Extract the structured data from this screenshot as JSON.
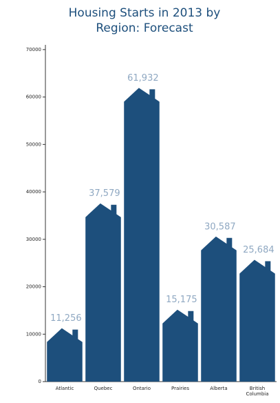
{
  "chart_data": {
    "type": "bar",
    "title": "Housing Starts in 2013 by Region: Forecast",
    "categories": [
      "Atlantic",
      "Quebec",
      "Ontario",
      "Prairies",
      "Alberta",
      "British Columbia"
    ],
    "values": [
      11256,
      37579,
      61932,
      15175,
      30587,
      25684
    ],
    "value_labels": [
      "11,256",
      "37,579",
      "61,932",
      "15,175",
      "30,587",
      "25,684"
    ],
    "color": "#1d4f7c",
    "ylim": [
      0,
      71000
    ],
    "yticks": [
      0,
      10000,
      20000,
      30000,
      40000,
      50000,
      60000,
      70000
    ]
  }
}
